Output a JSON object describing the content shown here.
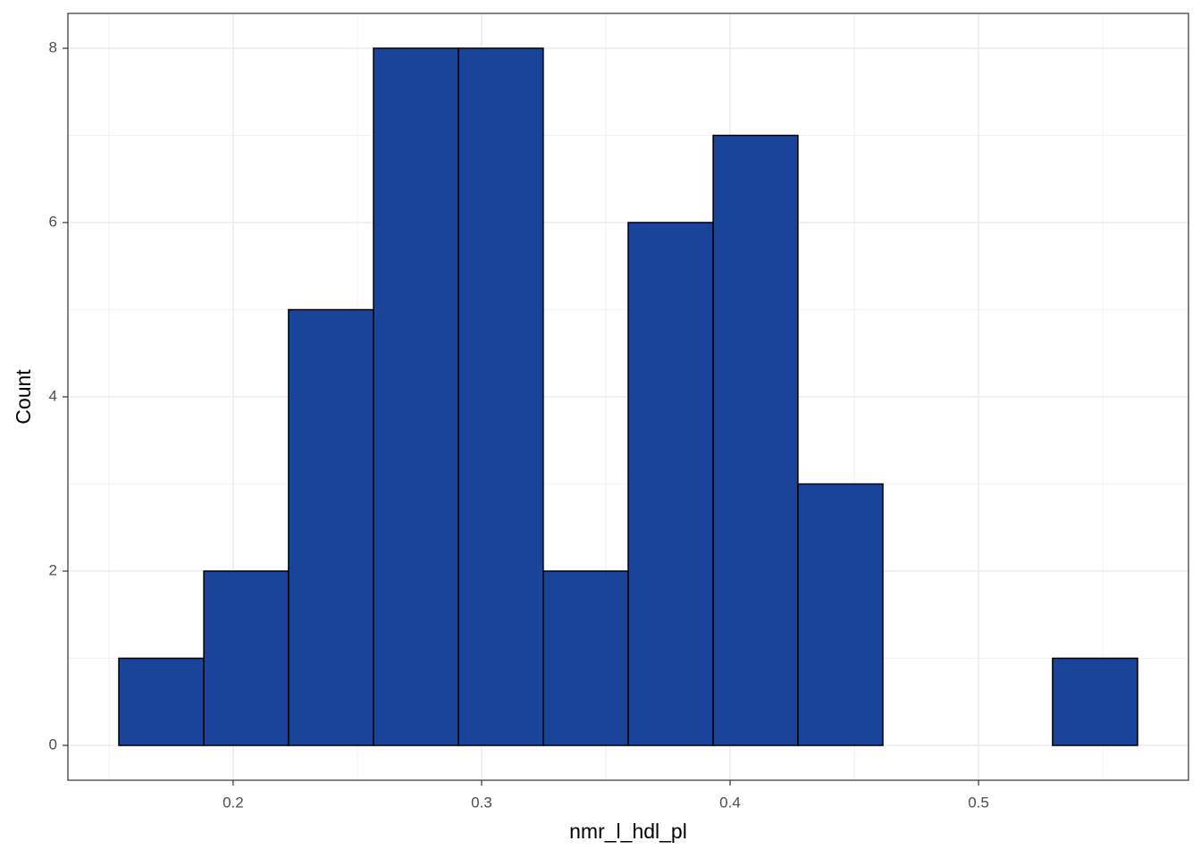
{
  "chart_data": {
    "type": "histogram",
    "x_label": "nmr_l_hdl_pl",
    "y_label": "Count",
    "bins": [
      0.154,
      0.1882,
      0.2223,
      0.2565,
      0.2907,
      0.3248,
      0.359,
      0.3932,
      0.4273,
      0.4615,
      0.4957,
      0.5298,
      0.564
    ],
    "values": [
      1,
      2,
      5,
      8,
      8,
      2,
      6,
      7,
      3,
      0,
      0,
      1
    ],
    "color": "#1a4499",
    "edgecolor": "#000000",
    "xlim": [
      0.1335,
      0.5845
    ],
    "xticks": [
      0.2,
      0.3,
      0.4,
      0.5
    ],
    "xminor": [
      0.15,
      0.25,
      0.35,
      0.45,
      0.55
    ],
    "ylim": [
      -0.4,
      8.4
    ],
    "yticks": [
      0,
      2,
      4,
      6,
      8
    ],
    "yminor": [
      1,
      3,
      5,
      7
    ],
    "grid": true
  }
}
